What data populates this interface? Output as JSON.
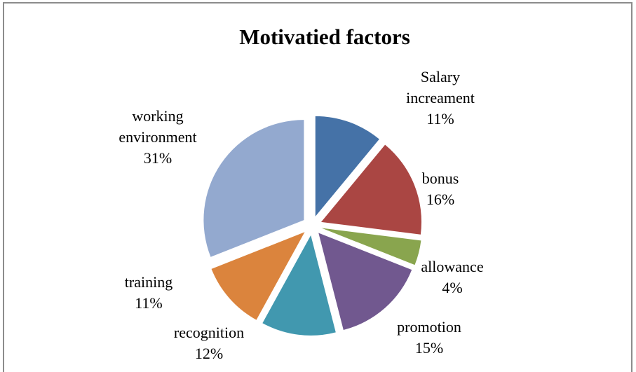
{
  "chart_data": {
    "type": "pie",
    "title": "Motivatied factors",
    "categories": [
      "Salary increament",
      "bonus",
      "allowance",
      "promotion",
      "recognition",
      "training",
      "working environment"
    ],
    "values": [
      11,
      16,
      4,
      15,
      12,
      11,
      31
    ],
    "value_labels": [
      "11%",
      "16%",
      "4%",
      "15%",
      "12%",
      "11%",
      "31%"
    ],
    "colors": [
      "#4572a7",
      "#aa4643",
      "#89a54e",
      "#71588f",
      "#4198af",
      "#db843d",
      "#93a9cf"
    ]
  }
}
